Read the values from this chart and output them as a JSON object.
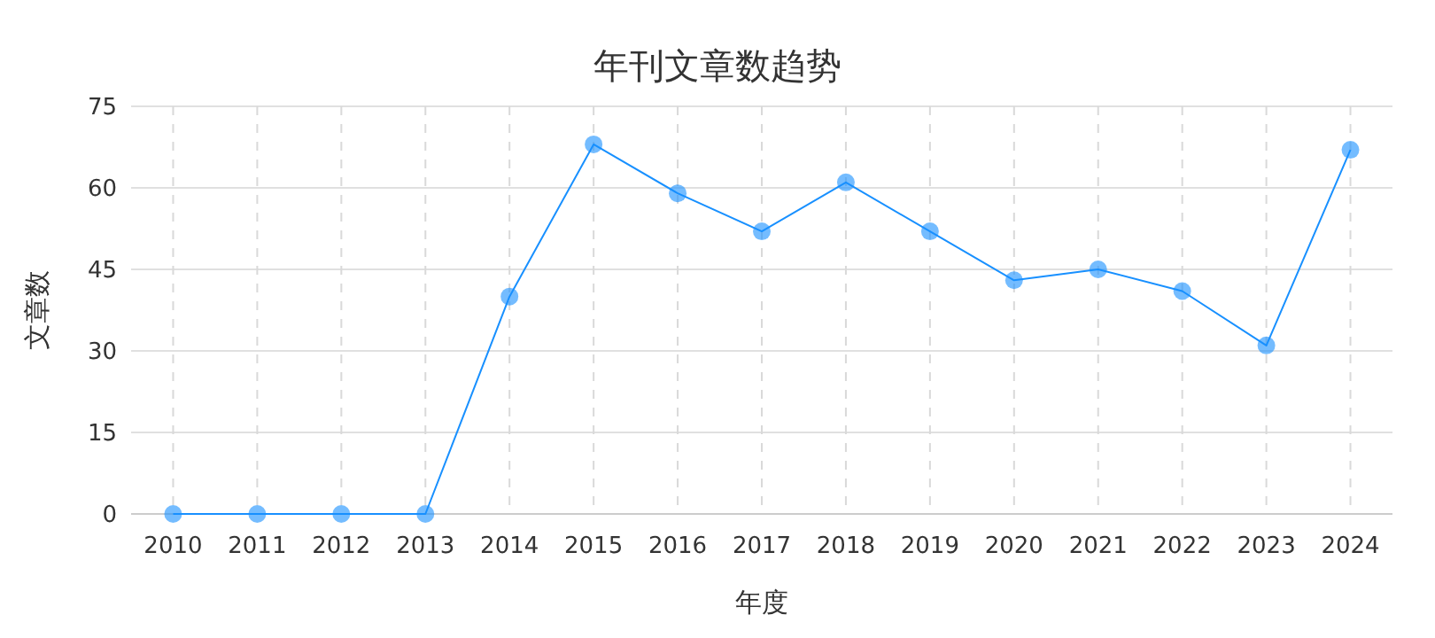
{
  "chart_data": {
    "type": "line",
    "title": "年刊文章数趋势",
    "xlabel": "年度",
    "ylabel": "文章数",
    "categories": [
      "2010",
      "2011",
      "2012",
      "2013",
      "2014",
      "2015",
      "2016",
      "2017",
      "2018",
      "2019",
      "2020",
      "2021",
      "2022",
      "2023",
      "2024"
    ],
    "series": [
      {
        "color": "#1890ff",
        "values": [
          0,
          0,
          0,
          0,
          40,
          68,
          59,
          52,
          61,
          52,
          43,
          45,
          41,
          31,
          67
        ]
      }
    ],
    "ylim": [
      0,
      75
    ],
    "yticks": [
      0,
      15,
      30,
      45,
      60,
      75
    ],
    "grid": true,
    "marker": "circle",
    "line_style": "solid"
  }
}
